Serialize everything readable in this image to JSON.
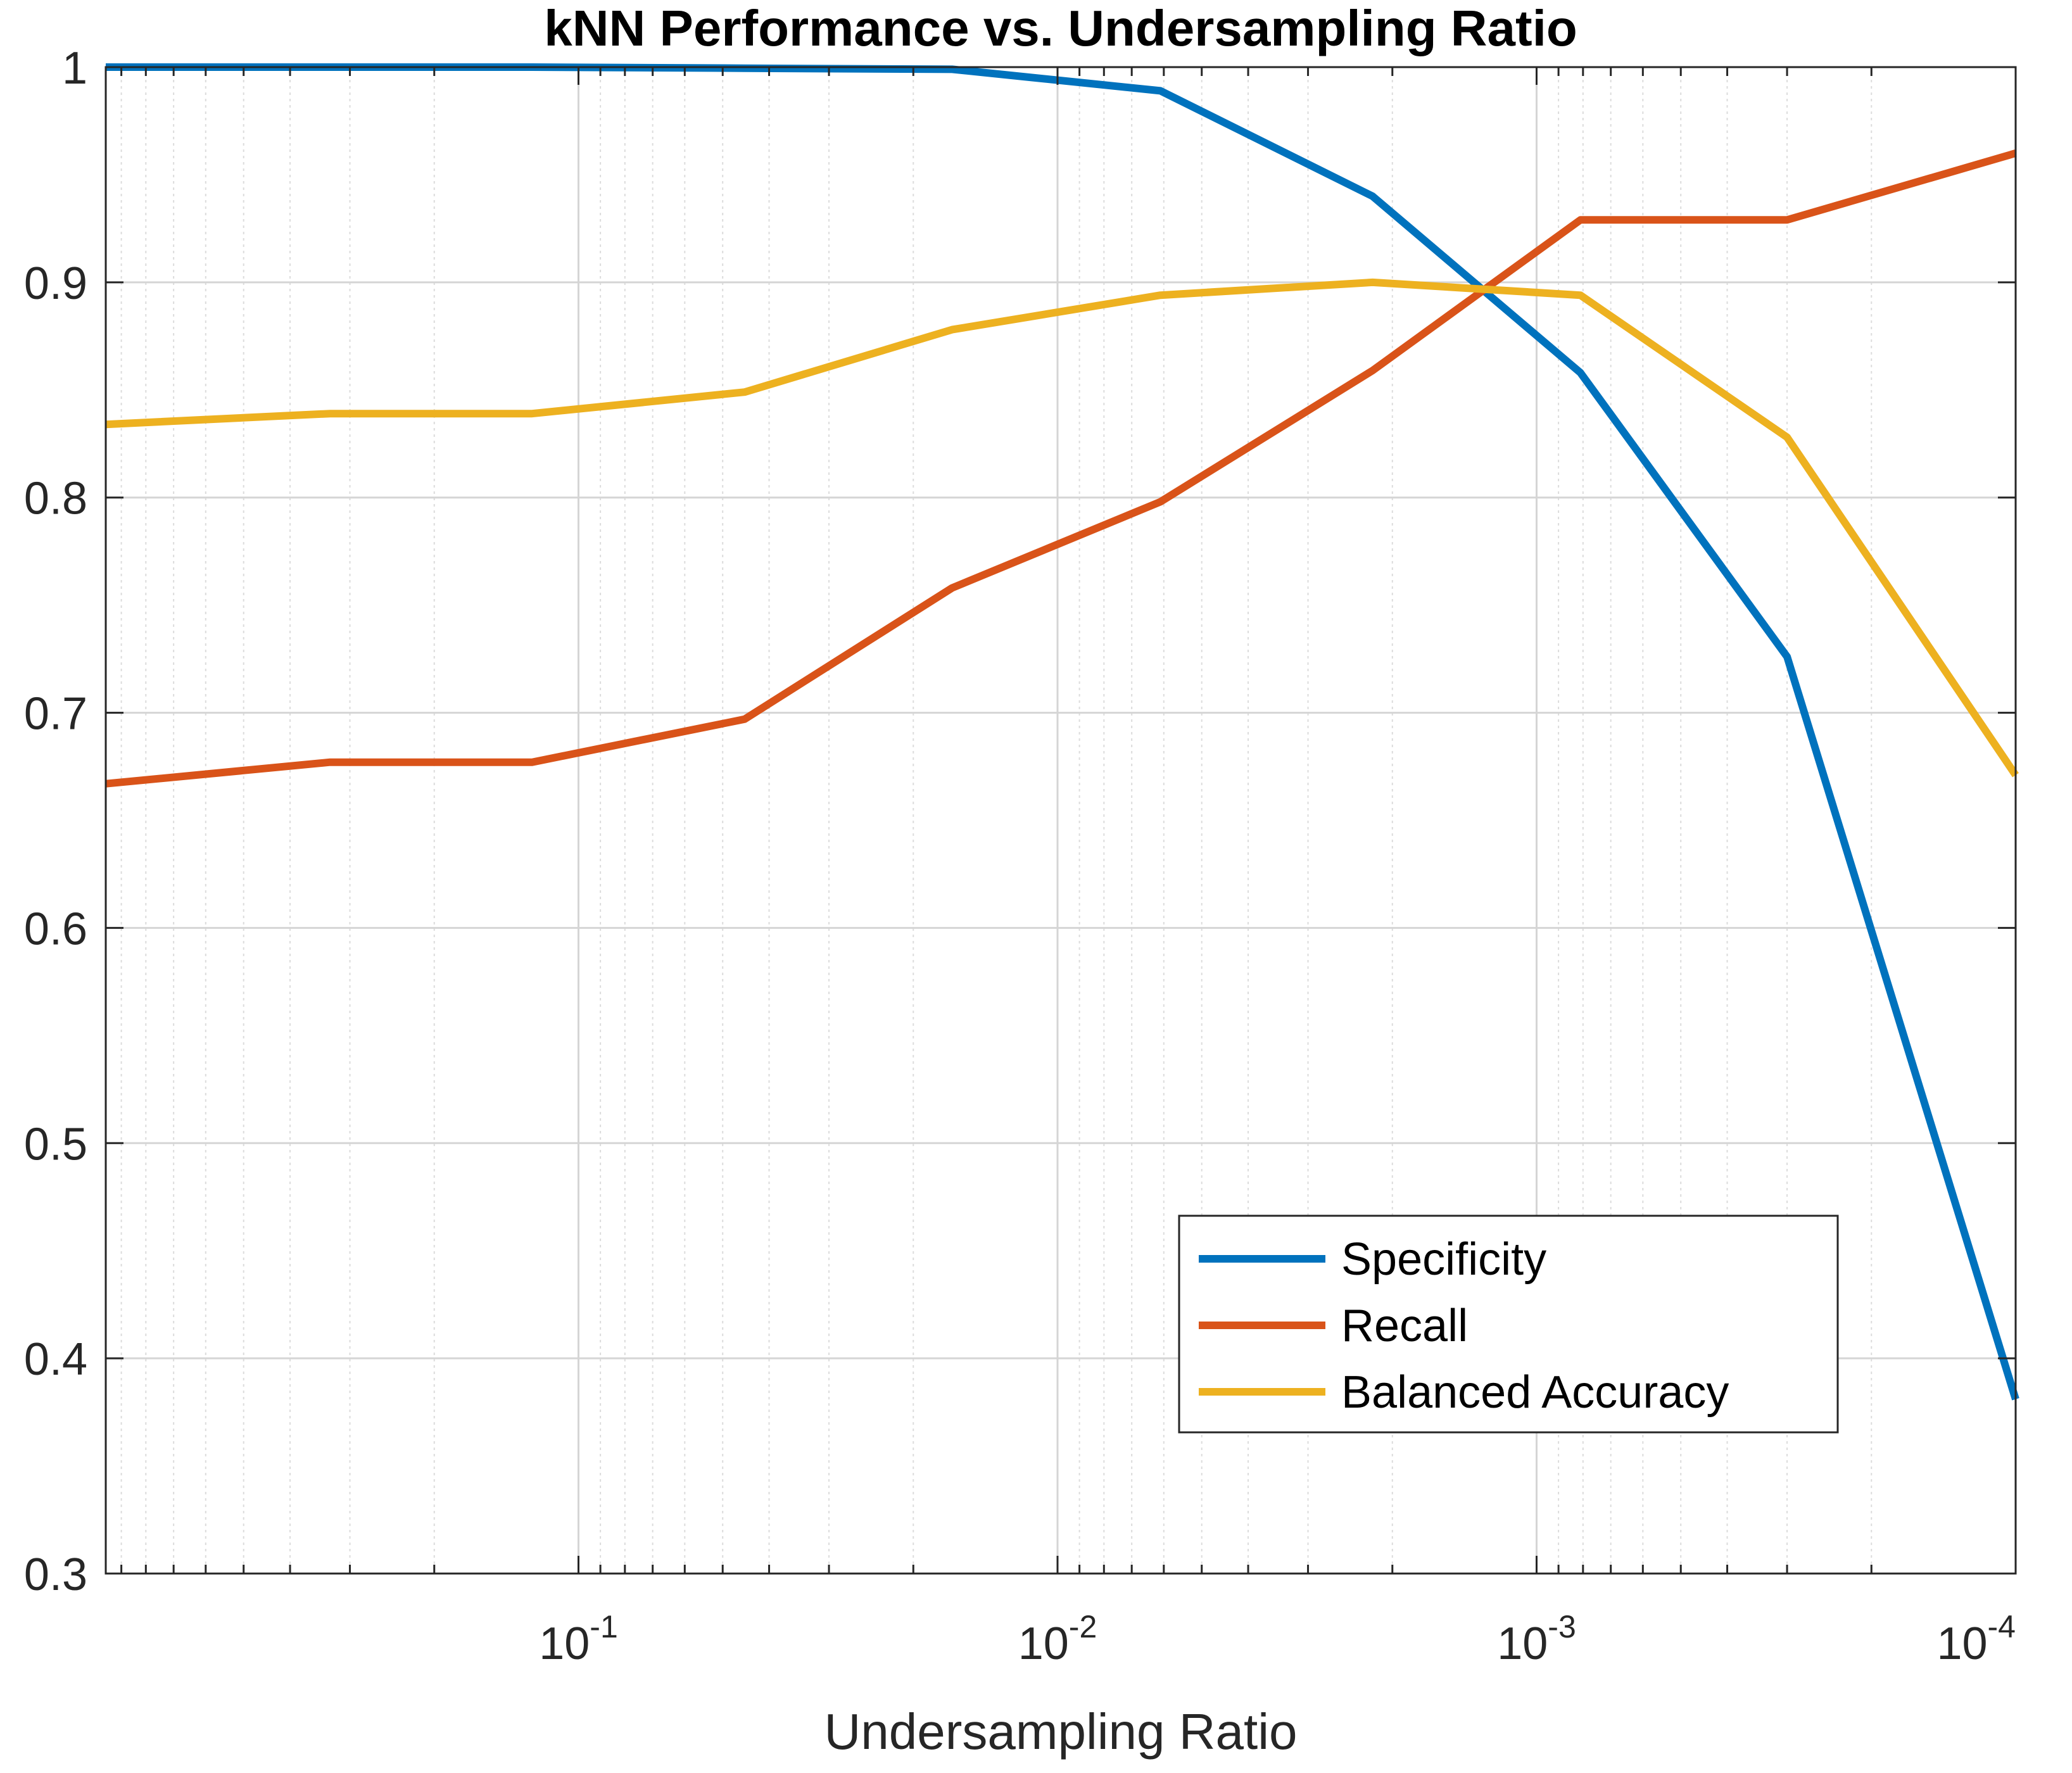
{
  "chart_data": {
    "type": "line",
    "title": "kNN Performance vs. Undersampling Ratio",
    "xlabel": "Undersampling Ratio",
    "ylabel": "",
    "x_scale": "log",
    "x_reversed": true,
    "xlim": [
      0.97,
      0.0001
    ],
    "ylim": [
      0.3,
      1.0
    ],
    "x_ticks": [
      {
        "value": 0.1,
        "base": "10",
        "exp": "-1"
      },
      {
        "value": 0.01,
        "base": "10",
        "exp": "-2"
      },
      {
        "value": 0.001,
        "base": "10",
        "exp": "-3"
      },
      {
        "value": 0.0001,
        "base": "10",
        "exp": "-4"
      }
    ],
    "y_ticks": [
      "0.3",
      "0.4",
      "0.5",
      "0.6",
      "0.7",
      "0.8",
      "0.9",
      "1"
    ],
    "grid": true,
    "legend_position": "bottom-right",
    "x": [
      0.97,
      0.33,
      0.125,
      0.045,
      0.0166,
      0.0061,
      0.0022,
      0.00081,
      0.0003,
      0.0001
    ],
    "series": [
      {
        "name": "Specificity",
        "color": "#0072BD",
        "values": [
          1.0,
          1.0,
          1.0,
          0.9995,
          0.999,
          0.989,
          0.94,
          0.858,
          0.726,
          0.381
        ]
      },
      {
        "name": "Recall",
        "color": "#D95319",
        "values": [
          0.667,
          0.677,
          0.677,
          0.697,
          0.758,
          0.798,
          0.859,
          0.929,
          0.929,
          0.96
        ]
      },
      {
        "name": "Balanced Accuracy",
        "color": "#EDB120",
        "values": [
          0.834,
          0.839,
          0.839,
          0.849,
          0.878,
          0.894,
          0.9,
          0.894,
          0.828,
          0.671
        ]
      }
    ]
  }
}
